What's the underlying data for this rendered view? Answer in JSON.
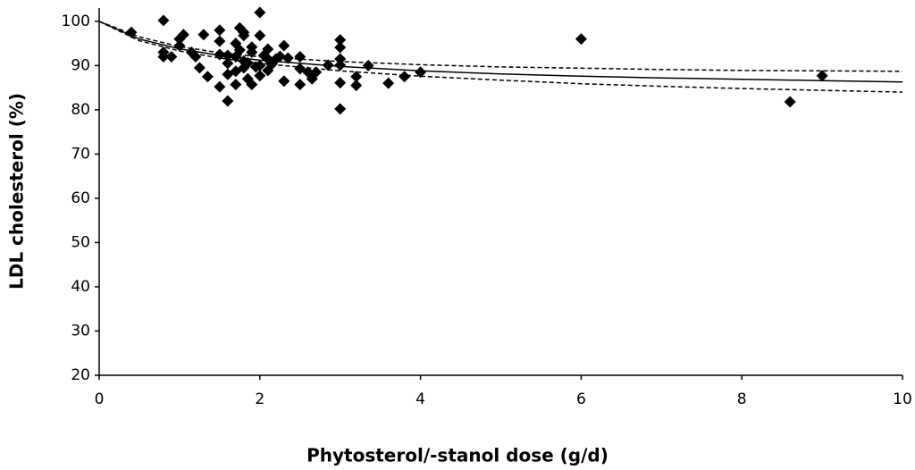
{
  "chart_data": {
    "type": "scatter",
    "xlabel": "Phytosterol/-stanol dose (g/d)",
    "ylabel": "LDL cholesterol (%)",
    "xlim": [
      0,
      10
    ],
    "xticks": [
      0,
      2,
      4,
      6,
      8,
      10
    ],
    "ylim": [
      20,
      103
    ],
    "yticks": [
      20,
      30,
      40,
      50,
      60,
      70,
      80,
      90,
      100
    ],
    "color": "#000000",
    "x": [
      0.4,
      0.8,
      0.8,
      0.8,
      0.9,
      1.0,
      1.05,
      1.0,
      1.15,
      1.2,
      1.25,
      1.3,
      1.35,
      1.5,
      1.5,
      1.5,
      1.5,
      1.6,
      1.6,
      1.6,
      1.7,
      1.7,
      1.75,
      1.75,
      1.8,
      1.8,
      1.85,
      1.85,
      1.9,
      1.95,
      2.0,
      2.0,
      2.0,
      2.05,
      2.1,
      2.1,
      2.15,
      2.2,
      2.25,
      2.3,
      2.3,
      2.35,
      2.5,
      2.5,
      2.5,
      2.6,
      2.65,
      2.7,
      2.85,
      3.0,
      3.0,
      3.0,
      3.0,
      3.0,
      3.0,
      3.2,
      3.2,
      3.35,
      3.6,
      3.8,
      4.0,
      6.0,
      8.6,
      9.0,
      1.7,
      1.8,
      1.9,
      1.6,
      1.8,
      2.0,
      2.1,
      1.9,
      1.7
    ],
    "values": [
      97.5,
      100.2,
      92,
      93,
      92,
      96,
      97,
      94.5,
      93,
      92,
      89.5,
      97,
      87.5,
      92.5,
      95.5,
      98,
      85.2,
      82,
      90.5,
      92.3,
      88.7,
      85.7,
      98.5,
      93.5,
      96.8,
      97.5,
      90.6,
      87,
      85.7,
      89.7,
      102,
      96.8,
      87.7,
      92.3,
      88.9,
      93.7,
      90.3,
      91.5,
      92.1,
      94.5,
      86.5,
      91.7,
      89.3,
      85.7,
      92,
      88.5,
      87,
      88.5,
      90.1,
      90.1,
      95.8,
      94.1,
      91.5,
      86.1,
      80.2,
      85.5,
      87.5,
      90,
      86,
      87.5,
      88.5,
      96,
      81.8,
      87.7,
      92,
      91,
      93,
      88,
      89.5,
      90,
      91.5,
      94.2,
      95
    ],
    "curves": [
      {
        "dashed": false,
        "x": [
          0,
          0.5,
          1,
          1.5,
          2,
          3,
          4,
          5,
          6,
          7,
          8,
          9,
          10
        ],
        "values": [
          100,
          96,
          93.8,
          92.3,
          91.2,
          89.8,
          88.8,
          88.1,
          87.6,
          87.2,
          86.9,
          86.6,
          86.3
        ]
      },
      {
        "dashed": true,
        "x": [
          0,
          0.5,
          1,
          1.5,
          2,
          3,
          4,
          5,
          6,
          7,
          8,
          9,
          10
        ],
        "values": [
          100,
          96.5,
          94.3,
          92.9,
          92,
          90.9,
          90.2,
          89.7,
          89.4,
          89.1,
          88.9,
          88.8,
          88.7
        ]
      },
      {
        "dashed": true,
        "x": [
          0,
          0.5,
          1,
          1.5,
          2,
          3,
          4,
          5,
          6,
          7,
          8,
          9,
          10
        ],
        "values": [
          100,
          95.6,
          93.3,
          91.7,
          90.5,
          88.8,
          87.6,
          86.7,
          85.9,
          85.3,
          84.8,
          84.4,
          84.0
        ]
      }
    ]
  }
}
